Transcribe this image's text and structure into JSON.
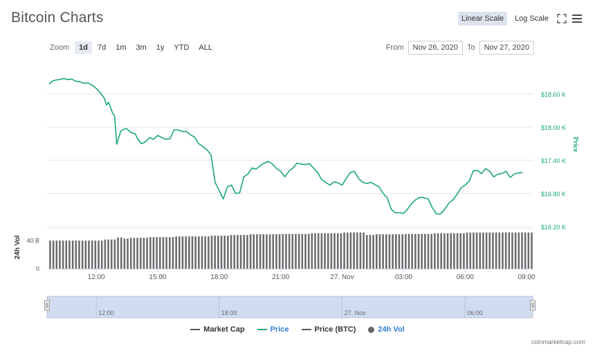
{
  "header": {
    "title": "Bitcoin Charts",
    "scale_linear": "Linear Scale",
    "scale_log": "Log Scale"
  },
  "toolbar": {
    "zoom_label": "Zoom",
    "zoom_buttons": [
      "1d",
      "7d",
      "1m",
      "3m",
      "1y",
      "YTD",
      "ALL"
    ],
    "active_zoom": "1d",
    "from_label": "From",
    "from_value": "Nov 26, 2020",
    "to_label": "To",
    "to_value": "Nov 27, 2020"
  },
  "legend": {
    "market_cap": "Market Cap",
    "price": "Price",
    "price_btc": "Price (BTC)",
    "vol": "24h Vol"
  },
  "credit": "coinmarketcap.com",
  "colors": {
    "price": "#1aa67a",
    "volume": "#6b6b6b",
    "active": "#dce3ee",
    "navigator": "#d1dcf0"
  },
  "chart_data": {
    "type": "line",
    "x_tick_labels": [
      "12:00",
      "15:00",
      "18:00",
      "21:00",
      "27. Nov",
      "03:00",
      "06:00",
      "09:00"
    ],
    "x_ticks": [
      12,
      15,
      18,
      21,
      24,
      27,
      30,
      33
    ],
    "xlim": [
      9.6,
      33.3
    ],
    "y_tick_labels": [
      "$18.60 K",
      "$18.00 K",
      "$17.40 K",
      "$16.80 K",
      "$16.20 K"
    ],
    "y_ticks": [
      18600,
      18000,
      17400,
      16800,
      16200
    ],
    "ylim": [
      16200,
      19200
    ],
    "ylabel": "Price",
    "volume_axis_label": "24h Vol",
    "volume_tick_labels": [
      "40 B",
      "0"
    ],
    "volume_ticks": [
      40,
      0
    ],
    "volume_ylim": [
      0,
      57
    ],
    "navigator_labels": [
      "12:00",
      "18:00",
      "27. Nov",
      "06:00"
    ],
    "navigator_ticks": [
      12,
      18,
      24,
      30
    ],
    "price_series": {
      "name": "Price",
      "x": [
        9.7,
        9.85,
        10,
        10.2,
        10.4,
        10.6,
        10.8,
        11,
        11.2,
        11.4,
        11.6,
        11.8,
        12,
        12.2,
        12.4,
        12.5,
        12.6,
        12.8,
        12.9,
        13,
        13.2,
        13.4,
        13.5,
        13.7,
        13.9,
        14,
        14.2,
        14.4,
        14.6,
        14.8,
        15,
        15.2,
        15.4,
        15.6,
        15.8,
        16,
        16.2,
        16.4,
        16.6,
        16.8,
        17,
        17.2,
        17.4,
        17.6,
        17.8,
        18,
        18.2,
        18.4,
        18.6,
        18.8,
        19,
        19.2,
        19.4,
        19.6,
        19.8,
        20,
        20.2,
        20.4,
        20.6,
        20.8,
        21,
        21.2,
        21.4,
        21.6,
        21.8,
        22,
        22.2,
        22.4,
        22.6,
        22.8,
        23,
        23.2,
        23.4,
        23.6,
        23.8,
        24,
        24.2,
        24.4,
        24.6,
        24.8,
        25,
        25.2,
        25.4,
        25.6,
        25.8,
        26,
        26.2,
        26.4,
        26.6,
        26.8,
        27,
        27.2,
        27.4,
        27.6,
        27.8,
        28,
        28.2,
        28.4,
        28.6,
        28.8,
        29,
        29.2,
        29.4,
        29.6,
        29.8,
        30,
        30.2,
        30.4,
        30.6,
        30.8,
        31,
        31.2,
        31.4,
        31.6,
        31.8,
        32,
        32.2,
        32.4,
        32.6,
        32.8
      ],
      "y": [
        18780,
        18830,
        18850,
        18860,
        18880,
        18860,
        18870,
        18830,
        18820,
        18790,
        18800,
        18760,
        18700,
        18620,
        18520,
        18400,
        18450,
        18250,
        18200,
        17690,
        17930,
        17970,
        17970,
        17900,
        17880,
        17800,
        17700,
        17730,
        17810,
        17780,
        17850,
        17810,
        17780,
        17790,
        17950,
        17950,
        17920,
        17920,
        17860,
        17820,
        17700,
        17650,
        17590,
        17500,
        17000,
        16850,
        16700,
        16920,
        16950,
        16800,
        16810,
        17100,
        17150,
        17260,
        17240,
        17300,
        17350,
        17380,
        17330,
        17250,
        17200,
        17100,
        17200,
        17260,
        17350,
        17330,
        17320,
        17340,
        17260,
        17180,
        17050,
        17000,
        16950,
        17010,
        16990,
        16950,
        17070,
        17180,
        17200,
        17070,
        17000,
        16980,
        17000,
        16960,
        16920,
        16800,
        16720,
        16510,
        16450,
        16450,
        16440,
        16520,
        16620,
        16690,
        16730,
        16720,
        16700,
        16540,
        16430,
        16430,
        16510,
        16620,
        16680,
        16780,
        16900,
        16950,
        17020,
        17210,
        17220,
        17160,
        17250,
        17200,
        17100,
        17150,
        17160,
        17200,
        17090,
        17150,
        17170,
        17180
      ],
      "color": "#1aa67a"
    },
    "volume_series": {
      "name": "24h Vol",
      "x_start": 9.75,
      "x_end": 33.25,
      "count": 150,
      "levels": [
        {
          "until": 12.3,
          "value": 40
        },
        {
          "until": 13.0,
          "value": 41.5
        },
        {
          "until": 13.3,
          "value": 44.5
        },
        {
          "until": 13.6,
          "value": 43
        },
        {
          "until": 14.6,
          "value": 44
        },
        {
          "until": 15.8,
          "value": 45
        },
        {
          "until": 17.5,
          "value": 46
        },
        {
          "until": 18.5,
          "value": 47
        },
        {
          "until": 19.5,
          "value": 48
        },
        {
          "until": 21.0,
          "value": 49
        },
        {
          "until": 22.5,
          "value": 49.5
        },
        {
          "until": 24.0,
          "value": 50.5
        },
        {
          "until": 25.2,
          "value": 51.5
        },
        {
          "until": 25.6,
          "value": 48
        },
        {
          "until": 27.0,
          "value": 49
        },
        {
          "until": 28.5,
          "value": 49.5
        },
        {
          "until": 30.0,
          "value": 50.5
        },
        {
          "until": 33.3,
          "value": 51.5
        }
      ],
      "color": "#6b6b6b"
    }
  }
}
